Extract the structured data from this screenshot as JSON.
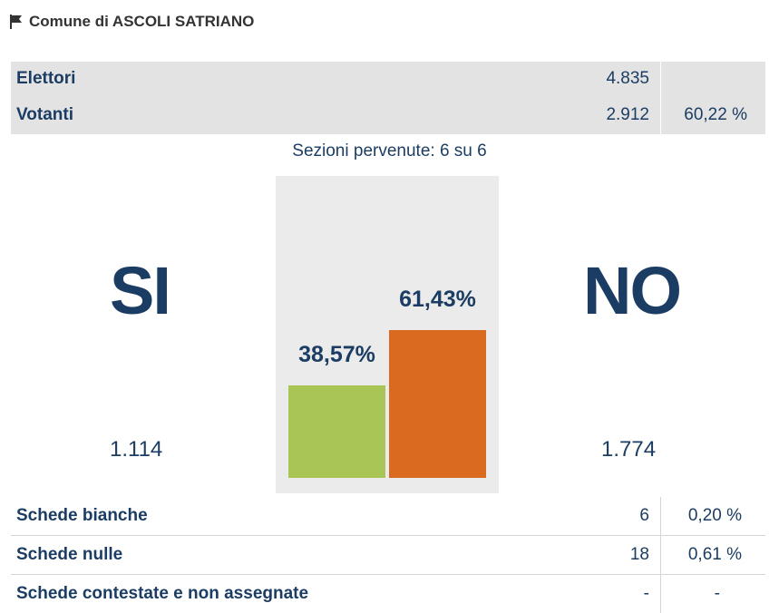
{
  "header": {
    "title": "Comune di ASCOLI SATRIANO",
    "icon": "flag-icon"
  },
  "summary": {
    "rows": [
      {
        "label": "Elettori",
        "value": "4.835",
        "percent": ""
      },
      {
        "label": "Votanti",
        "value": "2.912",
        "percent": "60,22 %"
      }
    ]
  },
  "sections": "Sezioni pervenute: 6 su 6",
  "results": {
    "si": {
      "label": "SI",
      "votes": "1.114",
      "percent_label": "38,57%"
    },
    "no": {
      "label": "NO",
      "votes": "1.774",
      "percent_label": "61,43%"
    }
  },
  "colors": {
    "si": "#a8c556",
    "no": "#d96a20",
    "text": "#1c3d63",
    "panel": "#ebebeb"
  },
  "chart_data": {
    "type": "bar",
    "categories": [
      "SI",
      "NO"
    ],
    "values": [
      38.57,
      61.43
    ],
    "ylim": [
      0,
      100
    ]
  },
  "details": {
    "rows": [
      {
        "label": "Schede bianche",
        "value": "6",
        "percent": "0,20 %"
      },
      {
        "label": "Schede nulle",
        "value": "18",
        "percent": "0,61 %"
      },
      {
        "label": "Schede contestate e non assegnate",
        "value": "-",
        "percent": "-"
      }
    ]
  }
}
